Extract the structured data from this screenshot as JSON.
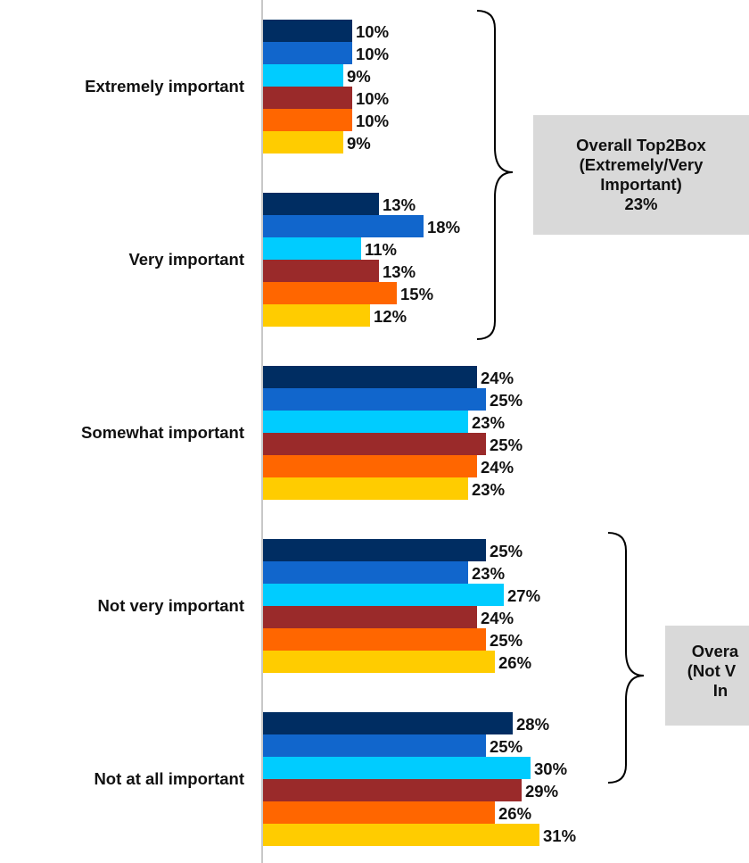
{
  "chart_data": {
    "type": "bar",
    "orientation": "horizontal",
    "categories": [
      "Extremely important",
      "Very important",
      "Somewhat important",
      "Not very important",
      "Not at all important"
    ],
    "series": [
      {
        "color": "#002d62",
        "values": [
          10,
          13,
          24,
          25,
          28
        ]
      },
      {
        "color": "#1166cc",
        "values": [
          10,
          18,
          25,
          23,
          25
        ]
      },
      {
        "color": "#00ccff",
        "values": [
          9,
          11,
          23,
          27,
          30
        ]
      },
      {
        "color": "#9a2a2a",
        "values": [
          10,
          13,
          25,
          24,
          29
        ]
      },
      {
        "color": "#ff6600",
        "values": [
          10,
          15,
          24,
          25,
          26
        ]
      },
      {
        "color": "#ffcc00",
        "values": [
          9,
          12,
          23,
          26,
          31
        ]
      }
    ],
    "value_format": "{v}%",
    "grid": false,
    "legend": "none"
  },
  "callouts": {
    "top": {
      "lines": [
        "Overall Top2Box",
        "(Extremely/Very",
        "Important)",
        "23%"
      ]
    },
    "bottom": {
      "lines": [
        "Overa",
        "(Not V",
        "In"
      ]
    }
  }
}
